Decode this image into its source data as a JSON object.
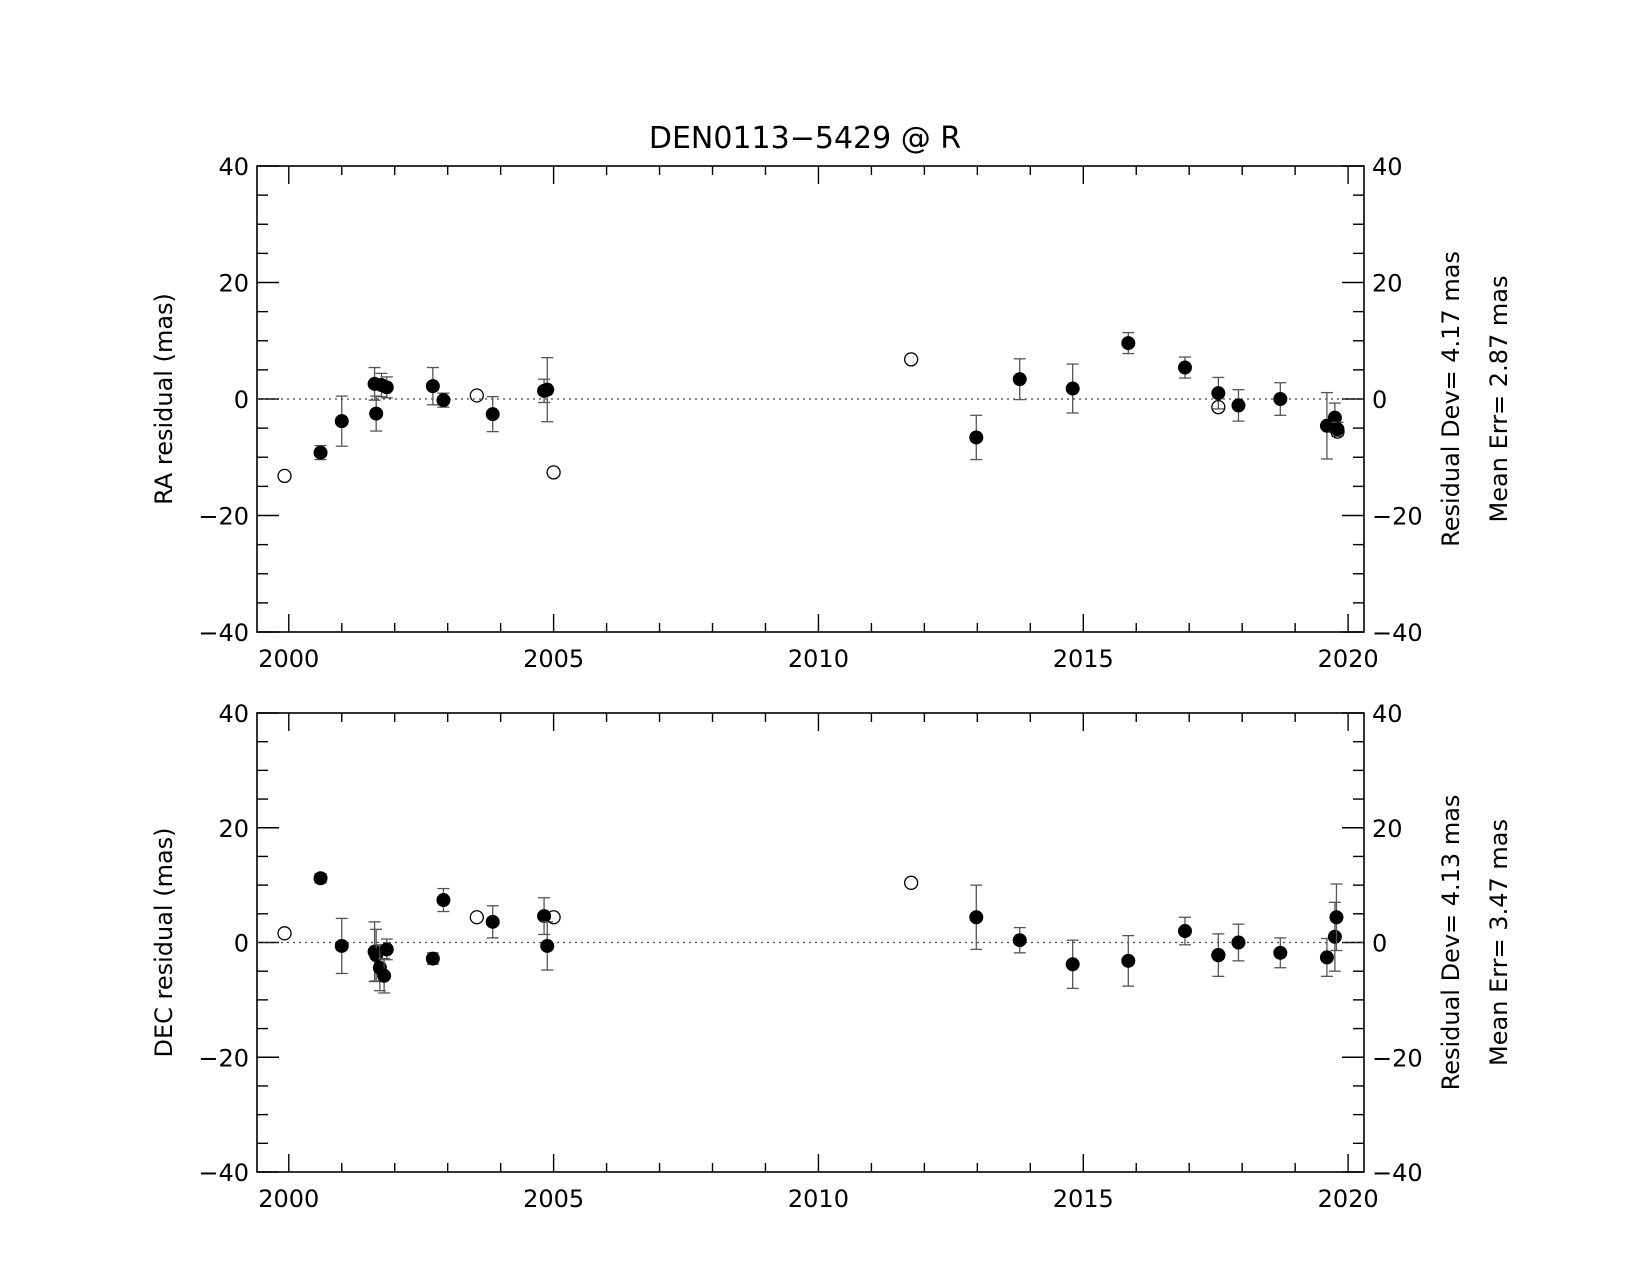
{
  "chart_data": [
    {
      "type": "scatter",
      "title": "DEN0113−5429 @ R",
      "ylabel": "RA residual (mas)",
      "xlim": [
        1999.4,
        2020.3
      ],
      "ylim": [
        -40,
        40
      ],
      "xticks": [
        "2000",
        "2005",
        "2010",
        "2015",
        "2020"
      ],
      "yticks": [
        "−40",
        "−20",
        "0",
        "20",
        "40"
      ],
      "zero_line": "dotted",
      "stats": {
        "residual_dev": "Residual Dev=   4.17  mas",
        "mean_err": "Mean  Err=  2.87  mas"
      },
      "series": [
        {
          "marker": "filled",
          "points": [
            {
              "x": 2000.6,
              "y": -9.2,
              "err": 1.2
            },
            {
              "x": 2001.0,
              "y": -3.8,
              "err": 4.3
            },
            {
              "x": 2001.62,
              "y": 2.6,
              "err": 2.8
            },
            {
              "x": 2001.65,
              "y": -2.5,
              "err": 3.0
            },
            {
              "x": 2001.75,
              "y": 2.4,
              "err": 2.0
            },
            {
              "x": 2001.85,
              "y": 2.0,
              "err": 1.8
            },
            {
              "x": 2002.72,
              "y": 2.2,
              "err": 3.2
            },
            {
              "x": 2002.92,
              "y": -0.2,
              "err": 1.2
            },
            {
              "x": 2003.85,
              "y": -2.6,
              "err": 3.0
            },
            {
              "x": 2004.82,
              "y": 1.4,
              "err": 2.0
            },
            {
              "x": 2004.88,
              "y": 1.6,
              "err": 5.5
            },
            {
              "x": 2012.98,
              "y": -6.6,
              "err": 3.8
            },
            {
              "x": 2013.8,
              "y": 3.4,
              "err": 3.5
            },
            {
              "x": 2014.8,
              "y": 1.8,
              "err": 4.2
            },
            {
              "x": 2015.85,
              "y": 9.6,
              "err": 1.8
            },
            {
              "x": 2016.92,
              "y": 5.4,
              "err": 1.8
            },
            {
              "x": 2017.55,
              "y": 1.0,
              "err": 2.7
            },
            {
              "x": 2017.93,
              "y": -1.1,
              "err": 2.7
            },
            {
              "x": 2018.72,
              "y": 0.0,
              "err": 2.8
            },
            {
              "x": 2019.6,
              "y": -4.6,
              "err": 5.7
            },
            {
              "x": 2019.75,
              "y": -3.2,
              "err": 2.5
            },
            {
              "x": 2019.8,
              "y": -5.2,
              "err": 1.2
            }
          ]
        },
        {
          "marker": "open",
          "points": [
            {
              "x": 1999.92,
              "y": -13.2
            },
            {
              "x": 2003.55,
              "y": 0.6
            },
            {
              "x": 2005.0,
              "y": -12.6
            },
            {
              "x": 2011.75,
              "y": 6.8
            },
            {
              "x": 2017.55,
              "y": -1.4
            },
            {
              "x": 2019.8,
              "y": -5.6
            }
          ]
        }
      ]
    },
    {
      "type": "scatter",
      "ylabel": "DEC residual (mas)",
      "xlim": [
        1999.4,
        2020.3
      ],
      "ylim": [
        -40,
        40
      ],
      "xticks": [
        "2000",
        "2005",
        "2010",
        "2015",
        "2020"
      ],
      "yticks": [
        "−40",
        "−20",
        "0",
        "20",
        "40"
      ],
      "zero_line": "dotted",
      "stats": {
        "residual_dev": "Residual Dev=   4.13  mas",
        "mean_err": "Mean  Err=  3.47  mas"
      },
      "series": [
        {
          "marker": "filled",
          "points": [
            {
              "x": 2000.6,
              "y": 11.2,
              "err": 0.8
            },
            {
              "x": 2001.0,
              "y": -0.6,
              "err": 4.8
            },
            {
              "x": 2001.62,
              "y": -1.6,
              "err": 5.2
            },
            {
              "x": 2001.65,
              "y": -2.2,
              "err": 4.5
            },
            {
              "x": 2001.72,
              "y": -4.4,
              "err": 4.0
            },
            {
              "x": 2001.8,
              "y": -5.8,
              "err": 3.0
            },
            {
              "x": 2001.85,
              "y": -1.2,
              "err": 1.8
            },
            {
              "x": 2002.72,
              "y": -2.8,
              "err": 1.0
            },
            {
              "x": 2002.92,
              "y": 7.4,
              "err": 2.0
            },
            {
              "x": 2003.85,
              "y": 3.6,
              "err": 2.8
            },
            {
              "x": 2004.82,
              "y": 4.6,
              "err": 3.2
            },
            {
              "x": 2004.88,
              "y": -0.6,
              "err": 4.2
            },
            {
              "x": 2012.98,
              "y": 4.4,
              "err": 5.6
            },
            {
              "x": 2013.8,
              "y": 0.4,
              "err": 2.2
            },
            {
              "x": 2014.8,
              "y": -3.8,
              "err": 4.2
            },
            {
              "x": 2015.85,
              "y": -3.2,
              "err": 4.4
            },
            {
              "x": 2016.92,
              "y": 2.0,
              "err": 2.4
            },
            {
              "x": 2017.55,
              "y": -2.2,
              "err": 3.7
            },
            {
              "x": 2017.93,
              "y": 0.0,
              "err": 3.2
            },
            {
              "x": 2018.72,
              "y": -1.8,
              "err": 2.6
            },
            {
              "x": 2019.6,
              "y": -2.6,
              "err": 3.3
            },
            {
              "x": 2019.75,
              "y": 1.0,
              "err": 6.0
            },
            {
              "x": 2019.78,
              "y": 4.4,
              "err": 5.8
            }
          ]
        },
        {
          "marker": "open",
          "points": [
            {
              "x": 1999.92,
              "y": 1.6
            },
            {
              "x": 2003.55,
              "y": 4.4
            },
            {
              "x": 2005.0,
              "y": 4.4
            },
            {
              "x": 2011.75,
              "y": 10.4
            },
            {
              "x": 2017.55,
              "y": -2.2
            }
          ]
        }
      ]
    }
  ]
}
